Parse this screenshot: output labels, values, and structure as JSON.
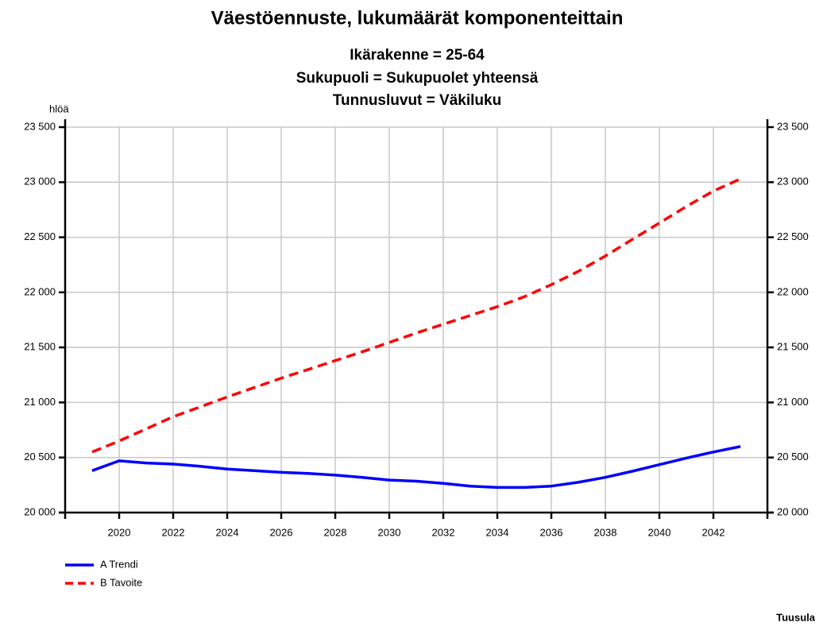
{
  "chart_data": {
    "type": "line",
    "title": "Väestöennuste, lukumäärät komponenteittain",
    "subtitle": [
      "Ikärakenne = 25-64",
      "Sukupuoli = Sukupuolet yhteensä",
      "Tunnusluvut = Väkiluku"
    ],
    "ylabel": "hlöä",
    "footer": "Tuusula",
    "x": [
      2019,
      2020,
      2021,
      2022,
      2023,
      2024,
      2025,
      2026,
      2027,
      2028,
      2029,
      2030,
      2031,
      2032,
      2033,
      2034,
      2035,
      2036,
      2037,
      2038,
      2039,
      2040,
      2041,
      2042,
      2043
    ],
    "series": [
      {
        "name": "A Trendi",
        "color": "#0000ff",
        "dash": false,
        "values": [
          20380,
          20470,
          20450,
          20440,
          20420,
          20395,
          20380,
          20365,
          20355,
          20340,
          20320,
          20295,
          20285,
          20265,
          20240,
          20228,
          20228,
          20240,
          20275,
          20320,
          20375,
          20435,
          20495,
          20550,
          20600
        ]
      },
      {
        "name": "B Tavoite",
        "color": "#ff0000",
        "dash": true,
        "values": [
          20550,
          20650,
          20760,
          20870,
          20960,
          21050,
          21135,
          21220,
          21300,
          21380,
          21460,
          21545,
          21630,
          21710,
          21790,
          21870,
          21960,
          22070,
          22190,
          22330,
          22480,
          22630,
          22780,
          22920,
          23030
        ]
      }
    ],
    "xlim": [
      2018,
      2044
    ],
    "xticks": [
      2020,
      2022,
      2024,
      2026,
      2028,
      2030,
      2032,
      2034,
      2036,
      2038,
      2040,
      2042
    ],
    "ylim": [
      20000,
      23500
    ],
    "yticks": [
      {
        "value": 20000,
        "label": "20 000"
      },
      {
        "value": 20500,
        "label": "20 500"
      },
      {
        "value": 21000,
        "label": "21 000"
      },
      {
        "value": 21500,
        "label": "21 500"
      },
      {
        "value": 22000,
        "label": "22 000"
      },
      {
        "value": 22500,
        "label": "22 500"
      },
      {
        "value": 23000,
        "label": "23 000"
      },
      {
        "value": 23500,
        "label": "23 500"
      }
    ],
    "grid": true,
    "legend": "bottom-left"
  }
}
